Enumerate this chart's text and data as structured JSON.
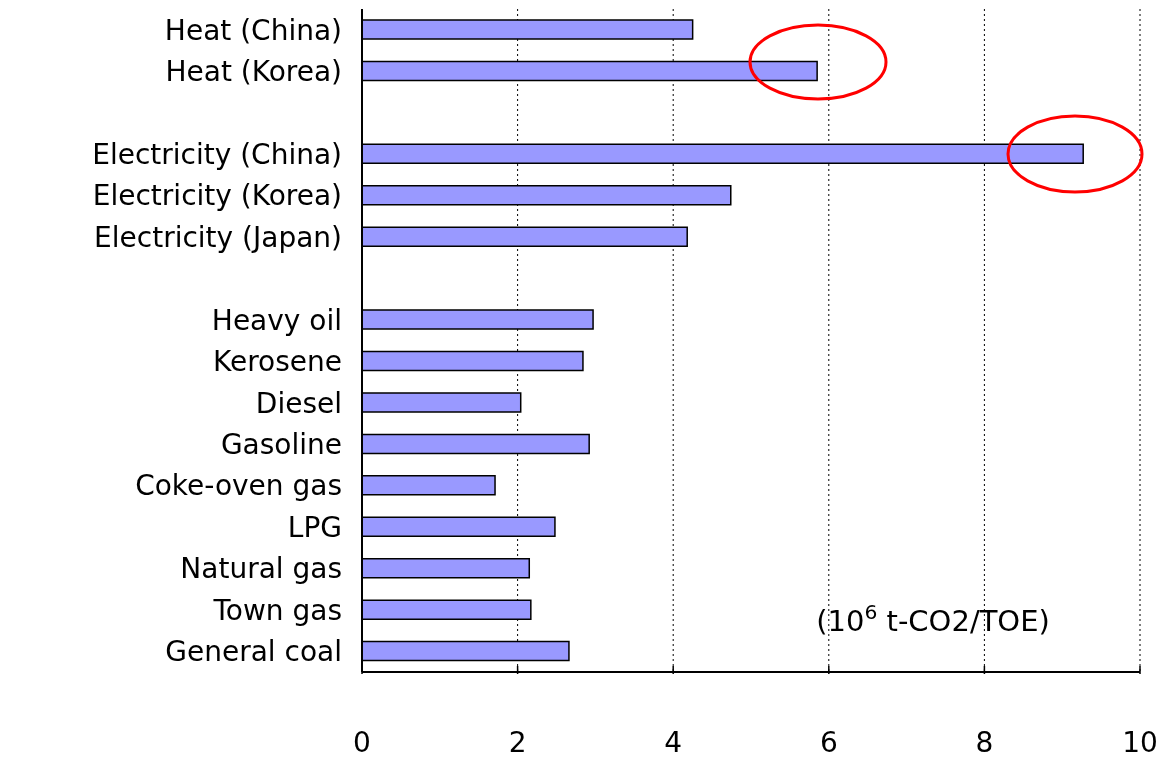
{
  "chart_data": {
    "type": "bar",
    "orientation": "horizontal",
    "categories": [
      "Heat (China)",
      "Heat (Korea)",
      null,
      "Electricity (China)",
      "Electricity (Korea)",
      "Electricity (Japan)",
      null,
      "Heavy oil",
      "Kerosene",
      "Diesel",
      "Gasoline",
      "Coke-oven gas",
      "LPG",
      "Natural  gas",
      "Town gas",
      "General coal"
    ],
    "values": [
      4.25,
      5.85,
      null,
      9.27,
      4.74,
      4.18,
      null,
      2.97,
      2.84,
      2.04,
      2.92,
      1.71,
      2.48,
      2.15,
      2.17,
      2.66
    ],
    "color": "#9999ff",
    "xlim": [
      0,
      10
    ],
    "xticks": [
      0,
      2,
      4,
      6,
      8,
      10
    ],
    "grid": "x",
    "annotations": [
      "(10$^{6}$ t-CO2/TOE)"
    ]
  }
}
